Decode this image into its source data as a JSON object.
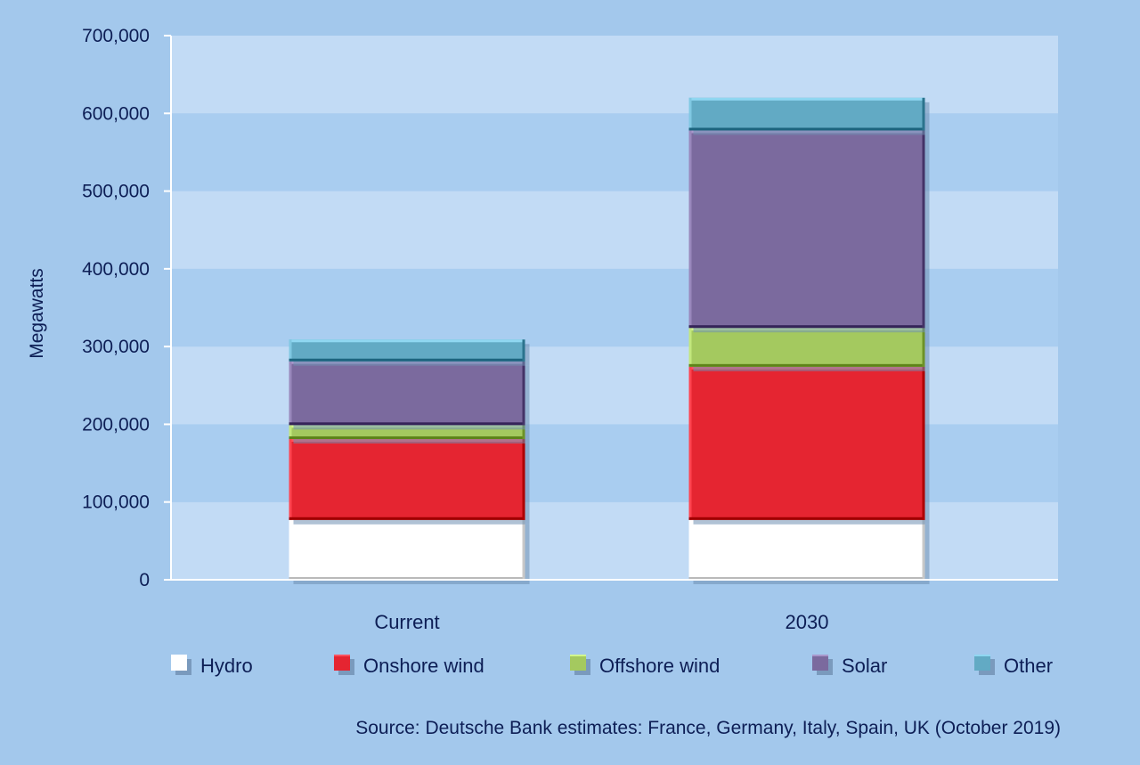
{
  "chart_data": {
    "type": "bar",
    "stacked": true,
    "categories": [
      "Current",
      "2030"
    ],
    "series": [
      {
        "name": "Hydro",
        "values": [
          77000,
          77000
        ],
        "color": "#ffffff"
      },
      {
        "name": "Onshore wind",
        "values": [
          104000,
          197000
        ],
        "color": "#e52531"
      },
      {
        "name": "Offshore wind",
        "values": [
          18000,
          50000
        ],
        "color": "#a4c95f"
      },
      {
        "name": "Solar",
        "values": [
          82000,
          254000
        ],
        "color": "#7b6a9e"
      },
      {
        "name": "Other",
        "values": [
          28000,
          42000
        ],
        "color": "#62aac4"
      }
    ],
    "ylabel": "Megawatts",
    "xlabel": "",
    "ylim": [
      0,
      700000
    ],
    "yticks": [
      0,
      100000,
      200000,
      300000,
      400000,
      500000,
      600000,
      700000
    ],
    "ytick_labels": [
      "0",
      "100,000",
      "200,000",
      "300,000",
      "400,000",
      "500,000",
      "600,000",
      "700,000"
    ],
    "grid": "alternating horizontal bands",
    "legend_position": "bottom",
    "source": "Source: Deutsche Bank estimates: France, Germany, Italy, Spain, UK (October 2019)"
  },
  "colors": {
    "background": "#a3c8ec",
    "band_light": "#c2dbf5",
    "band_dark": "#a9cdf0",
    "axis": "#ffffff",
    "text": "#0d1e55"
  }
}
